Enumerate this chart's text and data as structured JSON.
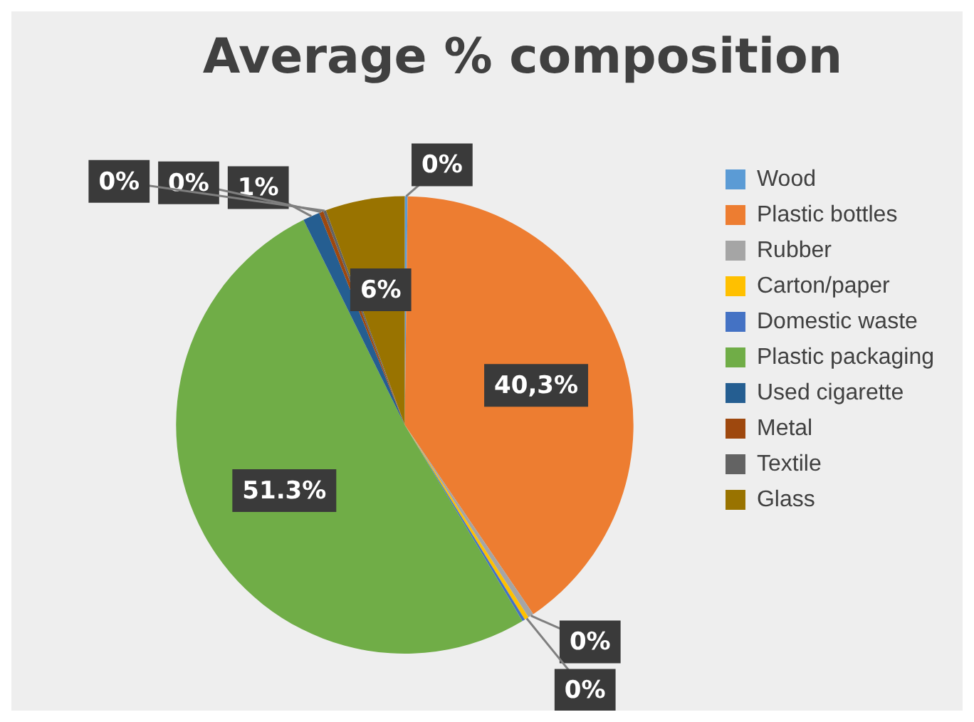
{
  "chart_data": {
    "type": "pie",
    "title": "Average % composition",
    "categories": [
      "Wood",
      "Plastic bottles",
      "Rubber",
      "Carton/paper",
      "Domestic waste",
      "Plastic packaging",
      "Used cigarette",
      "Metal",
      "Textile",
      "Glass"
    ],
    "values": [
      0.2,
      40.3,
      0.4,
      0.3,
      0.2,
      51.3,
      1.2,
      0.3,
      0.2,
      5.6
    ],
    "colors": [
      "#5b9bd5",
      "#ed7d31",
      "#a5a5a5",
      "#ffc000",
      "#4472c4",
      "#70ad47",
      "#255e91",
      "#9e480e",
      "#636363",
      "#997300"
    ],
    "value_labels": [
      "0%",
      "40,3%",
      "0%",
      "0%",
      null,
      "51.3%",
      "1%",
      "0%",
      "0%",
      "6%"
    ],
    "legend": "right"
  }
}
